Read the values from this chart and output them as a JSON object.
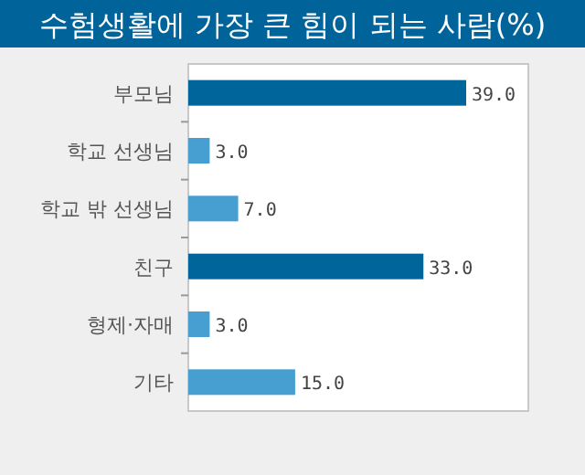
{
  "chart_data": {
    "type": "bar",
    "orientation": "horizontal",
    "title": "수험생활에 가장 큰 힘이 되는 사람(%)",
    "categories": [
      "부모님",
      "학교 선생님",
      "학교 밖 선생님",
      "친구",
      "형제·자매",
      "기타"
    ],
    "values": [
      39.0,
      3.0,
      7.0,
      33.0,
      3.0,
      15.0
    ],
    "colors": [
      "#00659b",
      "#479fd1",
      "#479fd1",
      "#00659b",
      "#479fd1",
      "#479fd1"
    ],
    "value_labels": [
      "39.0",
      "3.0",
      "7.0",
      "33.0",
      "3.0",
      "15.0"
    ]
  }
}
